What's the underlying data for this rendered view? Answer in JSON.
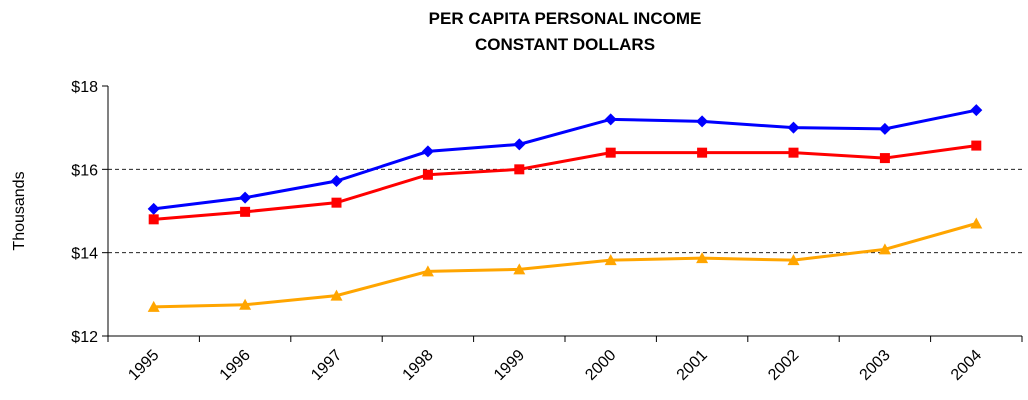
{
  "chart_data": {
    "type": "line",
    "title": [
      "PER CAPITA PERSONAL INCOME",
      "CONSTANT DOLLARS"
    ],
    "ylabel": "Thousands",
    "categories": [
      "1995",
      "1996",
      "1997",
      "1998",
      "1999",
      "2000",
      "2001",
      "2002",
      "2003",
      "2004"
    ],
    "series": [
      {
        "color": "#0000ff",
        "marker": "diamond",
        "values": [
          15.05,
          15.32,
          15.72,
          16.43,
          16.6,
          17.2,
          17.15,
          17.0,
          16.97,
          17.42
        ]
      },
      {
        "color": "#ff0000",
        "marker": "square",
        "values": [
          14.8,
          14.98,
          15.2,
          15.87,
          16.0,
          16.4,
          16.4,
          16.4,
          16.27,
          16.57
        ]
      },
      {
        "color": "#ffa500",
        "marker": "triangle",
        "values": [
          12.7,
          12.75,
          12.97,
          13.55,
          13.6,
          13.82,
          13.87,
          13.82,
          14.08,
          14.7
        ]
      }
    ],
    "ylim": [
      12,
      18
    ],
    "yticks": [
      {
        "value": 12,
        "label": "$12"
      },
      {
        "value": 14,
        "label": "$14"
      },
      {
        "value": 16,
        "label": "$16"
      },
      {
        "value": 18,
        "label": "$18"
      }
    ],
    "grid": true
  }
}
